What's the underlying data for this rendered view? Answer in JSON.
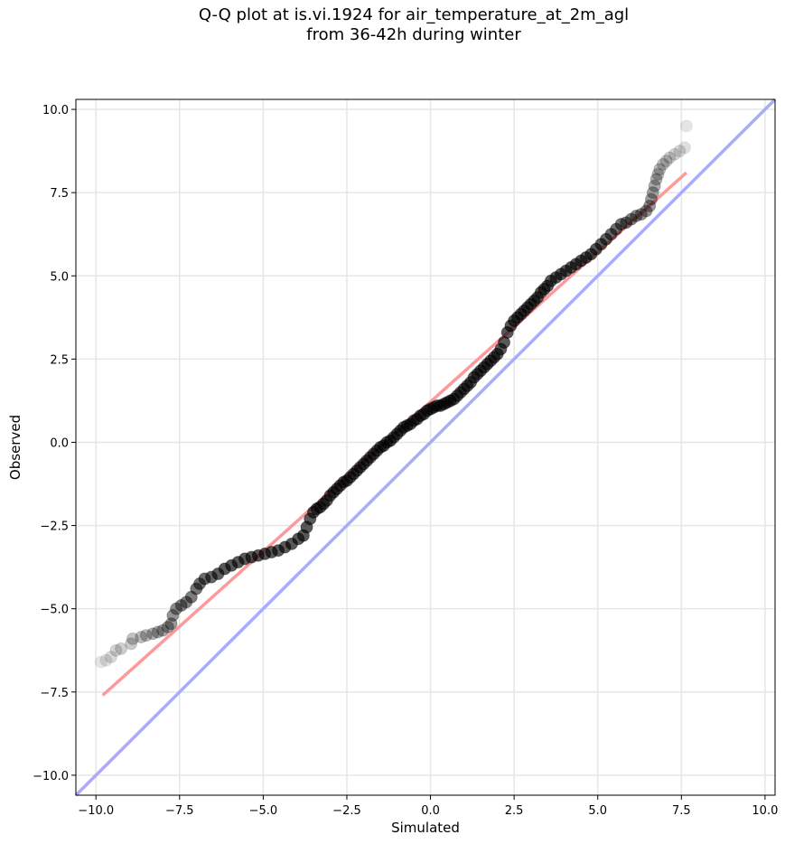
{
  "chart_data": {
    "type": "scatter",
    "title_lines": [
      "Q-Q plot at is.vi.1924 for air_temperature_at_2m_agl",
      "from 36-42h during winter"
    ],
    "xlabel": "Simulated",
    "ylabel": "Observed",
    "xlim": [
      -10.6,
      10.3
    ],
    "ylim": [
      -10.6,
      10.3
    ],
    "xticks": [
      -10.0,
      -7.5,
      -5.0,
      -2.5,
      0.0,
      2.5,
      5.0,
      7.5,
      10.0
    ],
    "yticks": [
      -10.0,
      -7.5,
      -5.0,
      -2.5,
      0.0,
      2.5,
      5.0,
      7.5,
      10.0
    ],
    "tick_labels": [
      "−10.0",
      "−7.5",
      "−5.0",
      "−2.5",
      "0.0",
      "2.5",
      "5.0",
      "7.5",
      "10.0"
    ],
    "grid": true,
    "marker_color": "#000000",
    "identity_line": {
      "color": "#aaaaff",
      "from": [
        -10.6,
        -10.6
      ],
      "to": [
        10.3,
        10.3
      ]
    },
    "fit_line": {
      "color": "#ff9999",
      "from": [
        -9.8,
        -7.6
      ],
      "to": [
        7.65,
        8.1
      ]
    },
    "points": [
      [
        -9.85,
        -6.6
      ],
      [
        -9.7,
        -6.55
      ],
      [
        -9.55,
        -6.45
      ],
      [
        -9.4,
        -6.25
      ],
      [
        -9.25,
        -6.2
      ],
      [
        -8.95,
        -6.05
      ],
      [
        -8.9,
        -5.9
      ],
      [
        -8.65,
        -5.85
      ],
      [
        -8.5,
        -5.8
      ],
      [
        -8.3,
        -5.75
      ],
      [
        -8.15,
        -5.7
      ],
      [
        -8.0,
        -5.65
      ],
      [
        -7.85,
        -5.55
      ],
      [
        -7.75,
        -5.45
      ],
      [
        -7.7,
        -5.2
      ],
      [
        -7.6,
        -5.0
      ],
      [
        -7.45,
        -4.9
      ],
      [
        -7.3,
        -4.8
      ],
      [
        -7.15,
        -4.65
      ],
      [
        -7.0,
        -4.4
      ],
      [
        -6.9,
        -4.25
      ],
      [
        -6.75,
        -4.1
      ],
      [
        -6.55,
        -4.05
      ],
      [
        -6.35,
        -3.95
      ],
      [
        -6.15,
        -3.8
      ],
      [
        -5.95,
        -3.7
      ],
      [
        -5.75,
        -3.6
      ],
      [
        -5.55,
        -3.5
      ],
      [
        -5.35,
        -3.45
      ],
      [
        -5.15,
        -3.4
      ],
      [
        -4.95,
        -3.35
      ],
      [
        -4.75,
        -3.3
      ],
      [
        -4.55,
        -3.25
      ],
      [
        -4.35,
        -3.15
      ],
      [
        -4.15,
        -3.05
      ],
      [
        -3.95,
        -2.9
      ],
      [
        -3.8,
        -2.8
      ],
      [
        -3.7,
        -2.55
      ],
      [
        -3.6,
        -2.3
      ],
      [
        -3.5,
        -2.1
      ],
      [
        -3.4,
        -2.0
      ],
      [
        -3.3,
        -1.95
      ],
      [
        -3.2,
        -1.85
      ],
      [
        -3.1,
        -1.75
      ],
      [
        -3.0,
        -1.6
      ],
      [
        -2.9,
        -1.5
      ],
      [
        -2.8,
        -1.4
      ],
      [
        -2.7,
        -1.3
      ],
      [
        -2.6,
        -1.2
      ],
      [
        -2.5,
        -1.15
      ],
      [
        -2.4,
        -1.05
      ],
      [
        -2.3,
        -0.95
      ],
      [
        -2.2,
        -0.85
      ],
      [
        -2.1,
        -0.75
      ],
      [
        -2.0,
        -0.65
      ],
      [
        -1.9,
        -0.55
      ],
      [
        -1.8,
        -0.45
      ],
      [
        -1.7,
        -0.35
      ],
      [
        -1.6,
        -0.25
      ],
      [
        -1.5,
        -0.15
      ],
      [
        -1.4,
        -0.1
      ],
      [
        -1.3,
        0.0
      ],
      [
        -1.2,
        0.05
      ],
      [
        -1.1,
        0.15
      ],
      [
        -1.0,
        0.25
      ],
      [
        -0.9,
        0.35
      ],
      [
        -0.8,
        0.45
      ],
      [
        -0.7,
        0.5
      ],
      [
        -0.6,
        0.55
      ],
      [
        -0.5,
        0.65
      ],
      [
        -0.4,
        0.7
      ],
      [
        -0.3,
        0.8
      ],
      [
        -0.2,
        0.85
      ],
      [
        -0.1,
        0.95
      ],
      [
        0.0,
        1.0
      ],
      [
        0.1,
        1.05
      ],
      [
        0.2,
        1.1
      ],
      [
        0.3,
        1.1
      ],
      [
        0.4,
        1.15
      ],
      [
        0.5,
        1.2
      ],
      [
        0.6,
        1.25
      ],
      [
        0.7,
        1.3
      ],
      [
        0.8,
        1.4
      ],
      [
        0.9,
        1.5
      ],
      [
        1.0,
        1.6
      ],
      [
        1.1,
        1.7
      ],
      [
        1.2,
        1.8
      ],
      [
        1.3,
        1.95
      ],
      [
        1.4,
        2.05
      ],
      [
        1.5,
        2.15
      ],
      [
        1.6,
        2.25
      ],
      [
        1.7,
        2.35
      ],
      [
        1.8,
        2.45
      ],
      [
        1.9,
        2.55
      ],
      [
        2.0,
        2.65
      ],
      [
        2.1,
        2.8
      ],
      [
        2.2,
        3.0
      ],
      [
        2.3,
        3.3
      ],
      [
        2.4,
        3.5
      ],
      [
        2.5,
        3.65
      ],
      [
        2.6,
        3.75
      ],
      [
        2.7,
        3.85
      ],
      [
        2.8,
        3.95
      ],
      [
        2.9,
        4.05
      ],
      [
        3.0,
        4.15
      ],
      [
        3.1,
        4.25
      ],
      [
        3.2,
        4.35
      ],
      [
        3.3,
        4.5
      ],
      [
        3.4,
        4.6
      ],
      [
        3.5,
        4.7
      ],
      [
        3.6,
        4.85
      ],
      [
        3.75,
        4.95
      ],
      [
        3.9,
        5.05
      ],
      [
        4.05,
        5.15
      ],
      [
        4.2,
        5.25
      ],
      [
        4.35,
        5.35
      ],
      [
        4.5,
        5.45
      ],
      [
        4.65,
        5.55
      ],
      [
        4.8,
        5.65
      ],
      [
        4.95,
        5.8
      ],
      [
        5.1,
        5.95
      ],
      [
        5.25,
        6.1
      ],
      [
        5.4,
        6.25
      ],
      [
        5.55,
        6.4
      ],
      [
        5.7,
        6.55
      ],
      [
        5.85,
        6.6
      ],
      [
        6.0,
        6.7
      ],
      [
        6.15,
        6.8
      ],
      [
        6.3,
        6.85
      ],
      [
        6.45,
        6.95
      ],
      [
        6.55,
        7.1
      ],
      [
        6.6,
        7.3
      ],
      [
        6.65,
        7.5
      ],
      [
        6.7,
        7.7
      ],
      [
        6.75,
        7.9
      ],
      [
        6.8,
        8.05
      ],
      [
        6.85,
        8.2
      ],
      [
        6.95,
        8.35
      ],
      [
        7.05,
        8.45
      ],
      [
        7.15,
        8.55
      ],
      [
        7.3,
        8.65
      ],
      [
        7.45,
        8.75
      ],
      [
        7.6,
        8.85
      ],
      [
        7.65,
        9.5
      ]
    ]
  }
}
